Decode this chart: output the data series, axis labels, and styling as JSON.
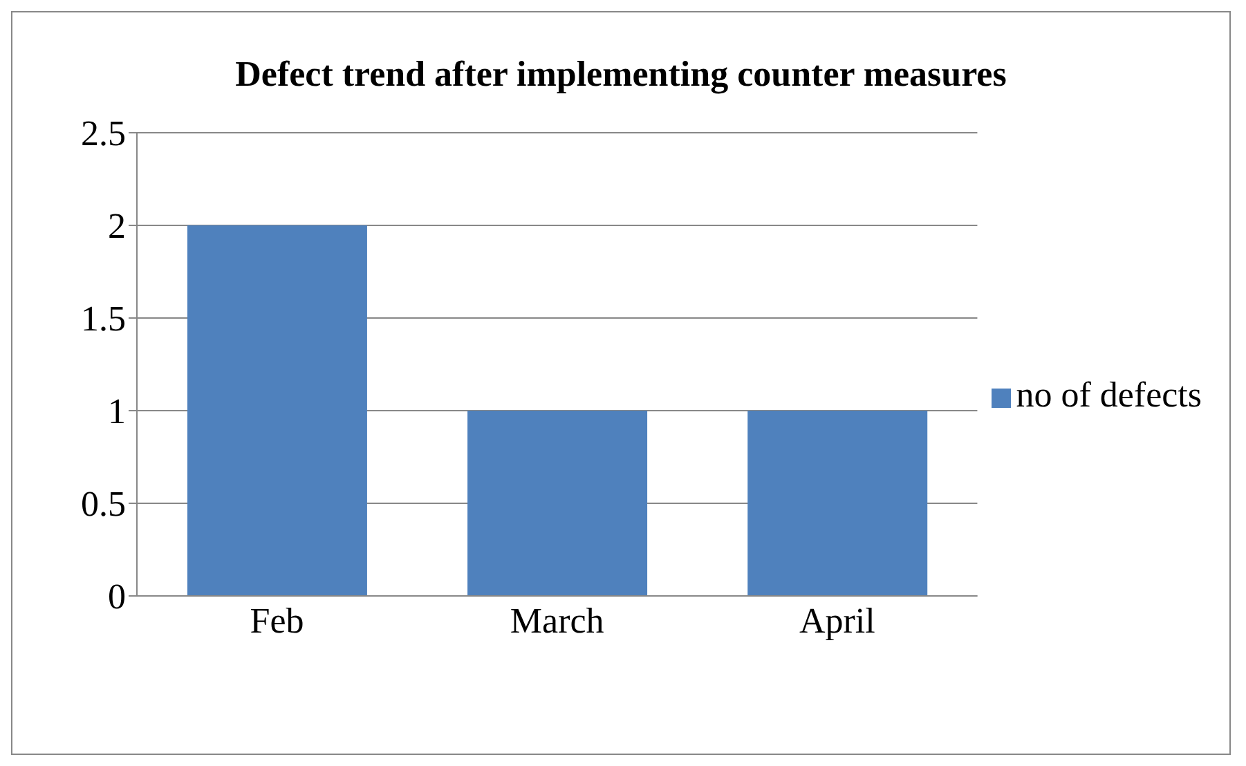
{
  "chart_data": {
    "type": "bar",
    "title": "Defect trend after implementing counter measures",
    "categories": [
      "Feb",
      "March",
      "April"
    ],
    "series": [
      {
        "name": "no of defects",
        "color": "#4f81bd",
        "values": [
          2,
          1,
          1
        ]
      }
    ],
    "ylim": [
      0,
      2.5
    ],
    "yticks": [
      0,
      0.5,
      1,
      1.5,
      2,
      2.5
    ],
    "grid": "y",
    "legend": "right"
  }
}
